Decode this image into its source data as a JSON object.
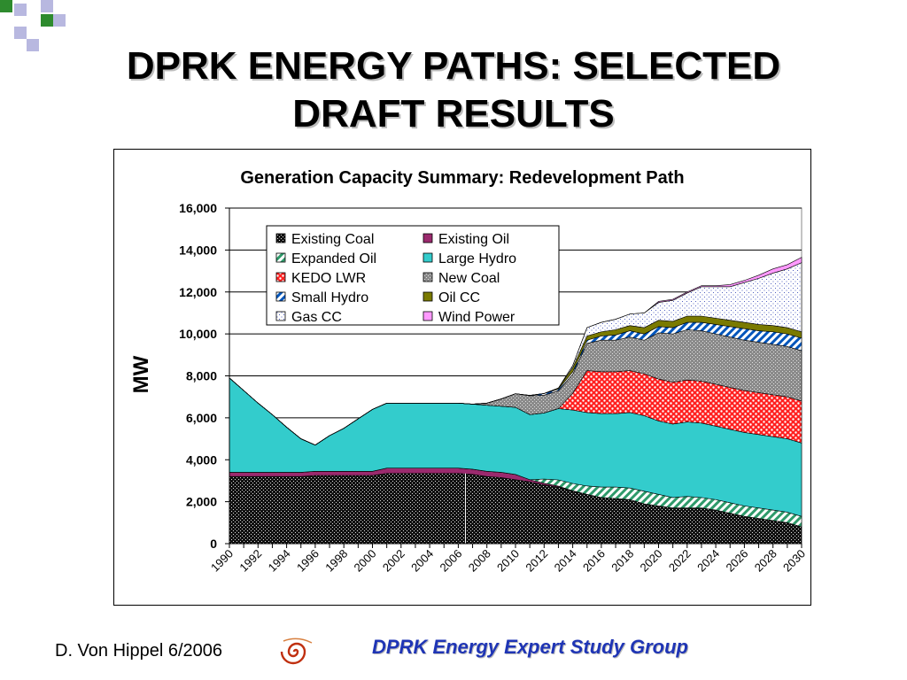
{
  "slide": {
    "title_line1": "DPRK ENERGY PATHS: SELECTED",
    "title_line2": "DRAFT RESULTS",
    "footer_left": "D. Von Hippel  6/2006",
    "footer_right": "DPRK Energy Expert Study Group",
    "logo_icon": "spiral-logo-icon",
    "colors": {
      "accent_green": "#2e8b2e",
      "accent_lavender": "#b8b8e0",
      "footer_blue": "#1f35b5"
    }
  },
  "chart_data": {
    "type": "area",
    "stacked": true,
    "title": "Generation Capacity Summary: Redevelopment Path",
    "xlabel": "",
    "ylabel": "MW",
    "xlim": [
      1990,
      2030
    ],
    "ylim": [
      0,
      16000
    ],
    "yticks": [
      0,
      2000,
      4000,
      6000,
      8000,
      10000,
      12000,
      14000,
      16000
    ],
    "ytick_labels": [
      "0",
      "2,000",
      "4,000",
      "6,000",
      "8,000",
      "10,000",
      "12,000",
      "14,000",
      "16,000"
    ],
    "xtick_labels": [
      "1990",
      "1992",
      "1994",
      "1996",
      "1998",
      "2000",
      "2002",
      "2004",
      "2006",
      "2008",
      "2010",
      "2012",
      "2014",
      "2016",
      "2018",
      "2020",
      "2022",
      "2024",
      "2026",
      "2028",
      "2030"
    ],
    "grid": "horizontal",
    "legend_position": "top-left inside",
    "x": [
      1990,
      1991,
      1992,
      1993,
      1994,
      1995,
      1996,
      1997,
      1998,
      1999,
      2000,
      2001,
      2002,
      2003,
      2004,
      2005,
      2006,
      2007,
      2008,
      2009,
      2010,
      2011,
      2012,
      2013,
      2014,
      2015,
      2016,
      2017,
      2018,
      2019,
      2020,
      2021,
      2022,
      2023,
      2024,
      2025,
      2026,
      2027,
      2028,
      2029,
      2030
    ],
    "series": [
      {
        "name": "Existing Coal",
        "pattern": "dark-dots",
        "color": "#1a1a1a",
        "values": [
          3200,
          3200,
          3200,
          3200,
          3200,
          3200,
          3250,
          3250,
          3250,
          3250,
          3250,
          3350,
          3350,
          3350,
          3350,
          3350,
          3350,
          3300,
          3200,
          3150,
          3050,
          2950,
          2800,
          2700,
          2500,
          2350,
          2200,
          2150,
          2100,
          1900,
          1800,
          1700,
          1700,
          1700,
          1600,
          1450,
          1300,
          1200,
          1100,
          1000,
          800
        ]
      },
      {
        "name": "Existing Oil",
        "pattern": "solid",
        "color": "#9b2a6e",
        "values": [
          200,
          200,
          200,
          200,
          200,
          200,
          200,
          200,
          200,
          200,
          200,
          250,
          250,
          250,
          250,
          250,
          250,
          250,
          250,
          250,
          250,
          100,
          80,
          40,
          20,
          0,
          0,
          0,
          0,
          0,
          0,
          0,
          0,
          0,
          0,
          0,
          0,
          0,
          0,
          0,
          0
        ]
      },
      {
        "name": "Expanded Oil",
        "pattern": "diagonal",
        "color": "#2e9a6a",
        "values": [
          0,
          0,
          0,
          0,
          0,
          0,
          0,
          0,
          0,
          0,
          0,
          0,
          0,
          0,
          0,
          0,
          0,
          0,
          0,
          0,
          0,
          0,
          200,
          300,
          350,
          400,
          500,
          550,
          550,
          600,
          550,
          500,
          550,
          500,
          500,
          500,
          500,
          500,
          500,
          500,
          500
        ]
      },
      {
        "name": "Large Hydro",
        "pattern": "solid",
        "color": "#33cccc",
        "values": [
          4500,
          3900,
          3300,
          2750,
          2150,
          1600,
          1250,
          1700,
          2050,
          2500,
          2950,
          3100,
          3100,
          3100,
          3100,
          3100,
          3100,
          3100,
          3150,
          3150,
          3200,
          3100,
          3150,
          3400,
          3500,
          3500,
          3500,
          3500,
          3600,
          3600,
          3500,
          3500,
          3550,
          3550,
          3500,
          3500,
          3500,
          3500,
          3500,
          3500,
          3500
        ]
      },
      {
        "name": "KEDO LWR",
        "pattern": "red-dots",
        "color": "#ff2020",
        "values": [
          0,
          0,
          0,
          0,
          0,
          0,
          0,
          0,
          0,
          0,
          0,
          0,
          0,
          0,
          0,
          0,
          0,
          0,
          0,
          0,
          0,
          0,
          0,
          0,
          800,
          2000,
          2000,
          2000,
          2000,
          2000,
          2000,
          2000,
          2000,
          2000,
          2000,
          2000,
          2000,
          2000,
          2000,
          2000,
          2000
        ]
      },
      {
        "name": "New Coal",
        "pattern": "gray-dots",
        "color": "#999999",
        "values": [
          0,
          0,
          0,
          0,
          0,
          0,
          0,
          0,
          0,
          0,
          0,
          0,
          0,
          0,
          0,
          0,
          0,
          0,
          100,
          350,
          650,
          900,
          850,
          850,
          900,
          1300,
          1500,
          1500,
          1600,
          1600,
          2200,
          2300,
          2400,
          2400,
          2400,
          2400,
          2400,
          2400,
          2400,
          2400,
          2400
        ]
      },
      {
        "name": "Small Hydro",
        "pattern": "diagonal",
        "color": "#0055bb",
        "values": [
          0,
          0,
          0,
          0,
          0,
          0,
          0,
          0,
          0,
          0,
          0,
          0,
          0,
          0,
          0,
          0,
          0,
          0,
          0,
          0,
          0,
          20,
          80,
          80,
          120,
          150,
          200,
          250,
          300,
          300,
          300,
          300,
          350,
          400,
          450,
          500,
          550,
          550,
          600,
          600,
          600
        ]
      },
      {
        "name": "Oil CC",
        "pattern": "solid",
        "color": "#7a7a00",
        "values": [
          0,
          0,
          0,
          0,
          0,
          0,
          0,
          0,
          0,
          0,
          0,
          0,
          0,
          0,
          0,
          0,
          0,
          0,
          0,
          0,
          0,
          0,
          0,
          50,
          200,
          200,
          200,
          250,
          250,
          300,
          300,
          300,
          300,
          300,
          300,
          300,
          300,
          300,
          300,
          300,
          300
        ]
      },
      {
        "name": "Gas CC",
        "pattern": "light-dots",
        "color": "#8080cc",
        "values": [
          0,
          0,
          0,
          0,
          0,
          0,
          0,
          0,
          0,
          0,
          0,
          0,
          0,
          0,
          0,
          0,
          0,
          0,
          0,
          0,
          0,
          0,
          0,
          0,
          100,
          400,
          450,
          500,
          550,
          700,
          850,
          1000,
          1100,
          1400,
          1500,
          1600,
          1900,
          2200,
          2500,
          2800,
          3300
        ]
      },
      {
        "name": "Wind Power",
        "pattern": "solid",
        "color": "#ff99ff",
        "values": [
          0,
          0,
          0,
          0,
          0,
          0,
          0,
          0,
          0,
          0,
          0,
          0,
          0,
          0,
          0,
          0,
          0,
          0,
          0,
          0,
          0,
          0,
          0,
          0,
          0,
          0,
          0,
          0,
          0,
          0,
          50,
          50,
          50,
          50,
          50,
          100,
          100,
          150,
          200,
          200,
          250
        ]
      }
    ]
  }
}
